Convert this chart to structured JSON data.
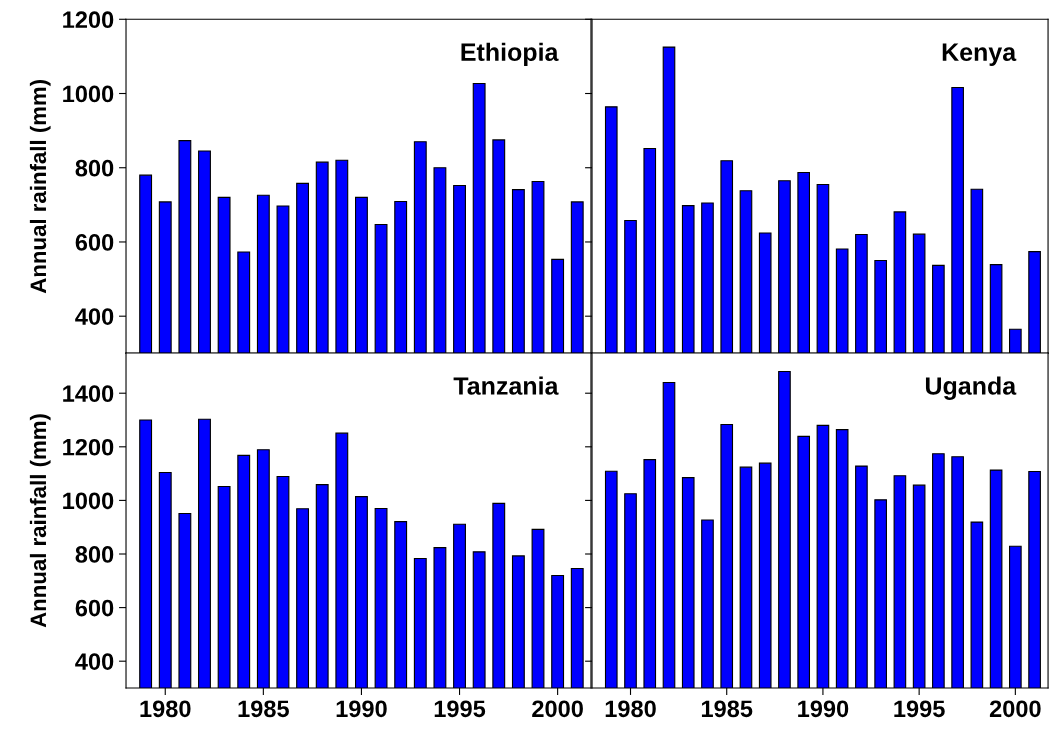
{
  "chart_data": [
    {
      "type": "bar",
      "title": "Ethiopia",
      "ylabel": "Annual rainfall (mm)",
      "x": [
        1979,
        1980,
        1981,
        1982,
        1983,
        1984,
        1985,
        1986,
        1987,
        1988,
        1989,
        1990,
        1991,
        1992,
        1993,
        1994,
        1995,
        1996,
        1997,
        1998,
        1999,
        2000,
        2001
      ],
      "color": "#0000ff",
      "values": [
        780,
        708,
        873,
        845,
        720,
        573,
        726,
        697,
        758,
        815,
        820,
        720,
        647,
        709,
        870,
        800,
        752,
        1027,
        875,
        741,
        763,
        553,
        708
      ],
      "xlim": [
        1978,
        2001.7
      ],
      "xticks": [
        1980,
        1985,
        1990,
        1995,
        2000
      ],
      "ylim": [
        300,
        1200
      ],
      "yticks": [
        400,
        600,
        800,
        1000,
        1200
      ],
      "tick_labels": "y"
    },
    {
      "type": "bar",
      "title": "Kenya",
      "x": [
        1979,
        1980,
        1981,
        1982,
        1983,
        1984,
        1985,
        1986,
        1987,
        1988,
        1989,
        1990,
        1991,
        1992,
        1993,
        1994,
        1995,
        1996,
        1997,
        1998,
        1999,
        2000,
        2001
      ],
      "color": "#0000ff",
      "values": [
        964,
        658,
        852,
        1125,
        698,
        705,
        819,
        738,
        624,
        765,
        787,
        755,
        581,
        620,
        550,
        681,
        621,
        537,
        1016,
        742,
        539,
        365,
        574
      ],
      "xlim": [
        1978,
        2001.7
      ],
      "xticks": [
        1980,
        1985,
        1990,
        1995,
        2000
      ],
      "ylim": [
        300,
        1200
      ],
      "yticks": [
        400,
        600,
        800,
        1000,
        1200
      ],
      "tick_labels": false
    },
    {
      "type": "bar",
      "title": "Tanzania",
      "ylabel": "Annual rainfall (mm)",
      "x": [
        1979,
        1980,
        1981,
        1982,
        1983,
        1984,
        1985,
        1986,
        1987,
        1988,
        1989,
        1990,
        1991,
        1992,
        1993,
        1994,
        1995,
        1996,
        1997,
        1998,
        1999,
        2000,
        2001
      ],
      "color": "#0000ff",
      "values": [
        1300,
        1104,
        951,
        1303,
        1052,
        1168,
        1189,
        1089,
        969,
        1059,
        1251,
        1014,
        970,
        921,
        783,
        824,
        911,
        808,
        989,
        793,
        892,
        720,
        746
      ],
      "xlim": [
        1978,
        2001.7
      ],
      "xticks": [
        1980,
        1985,
        1990,
        1995,
        2000
      ],
      "ylim": [
        300,
        1550
      ],
      "yticks": [
        400,
        600,
        800,
        1000,
        1200,
        1400
      ]
    },
    {
      "type": "bar",
      "title": "Uganda",
      "x": [
        1979,
        1980,
        1981,
        1982,
        1983,
        1984,
        1985,
        1986,
        1987,
        1988,
        1989,
        1990,
        1991,
        1992,
        1993,
        1994,
        1995,
        1996,
        1997,
        1998,
        1999,
        2000,
        2001
      ],
      "color": "#0000ff",
      "values": [
        1109,
        1025,
        1152,
        1440,
        1085,
        927,
        1283,
        1124,
        1139,
        1481,
        1239,
        1280,
        1264,
        1128,
        1002,
        1092,
        1057,
        1174,
        1163,
        919,
        1113,
        829,
        1108
      ],
      "xlim": [
        1978,
        2001.7
      ],
      "xticks": [
        1980,
        1985,
        1990,
        1995,
        2000
      ],
      "ylim": [
        300,
        1550
      ],
      "yticks": [
        400,
        600,
        800,
        1000,
        1200,
        1400
      ],
      "tick_labels": "x"
    }
  ]
}
